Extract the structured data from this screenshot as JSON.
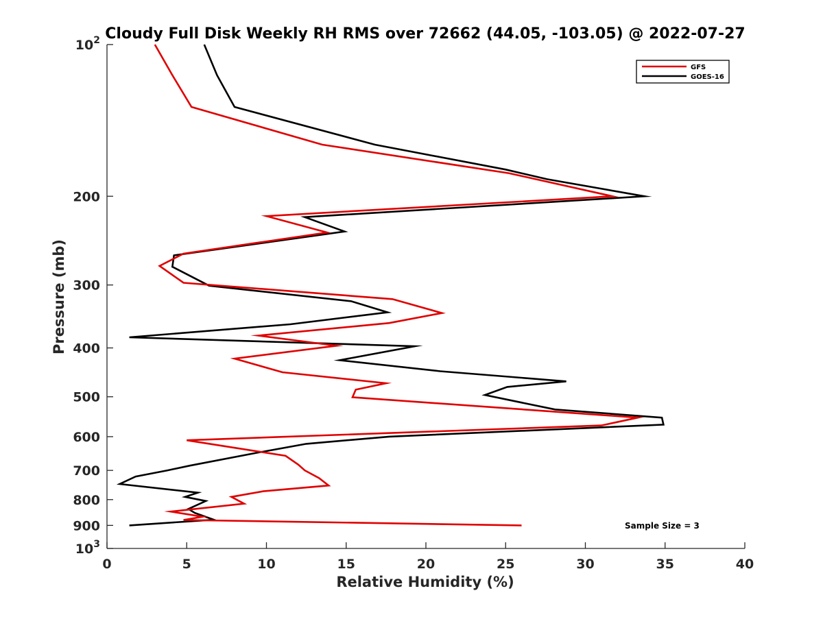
{
  "chart_data": {
    "type": "line",
    "title": "Cloudy Full Disk Weekly RH RMS over 72662 (44.05, -103.05) @ 2022-07-27",
    "xlabel": "Relative Humidity (%)",
    "ylabel": "Pressure (mb)",
    "xlim": [
      0,
      40
    ],
    "ylim": [
      100,
      1000
    ],
    "yscale": "log",
    "y_reversed": true,
    "xticks": [
      "0",
      "5",
      "10",
      "15",
      "20",
      "25",
      "30",
      "35",
      "40"
    ],
    "yticks": [
      "200",
      "300",
      "400",
      "500",
      "600",
      "700",
      "800",
      "900"
    ],
    "ytick_pow_top": {
      "base": "10",
      "exp": "2"
    },
    "ytick_pow_bottom": {
      "base": "10",
      "exp": "3"
    },
    "grid": false,
    "legend_position": "top-right",
    "annotation": "Sample Size = 3",
    "series": [
      {
        "name": "GFS",
        "color": "#e00000",
        "points": [
          [
            3.0,
            100
          ],
          [
            4.1,
            115
          ],
          [
            5.3,
            133
          ],
          [
            13.5,
            158
          ],
          [
            25.2,
            180
          ],
          [
            31.7,
            200
          ],
          [
            10.0,
            219
          ],
          [
            13.8,
            236
          ],
          [
            4.8,
            260
          ],
          [
            3.3,
            275
          ],
          [
            4.8,
            297
          ],
          [
            17.9,
            320
          ],
          [
            21.0,
            341
          ],
          [
            17.7,
            357
          ],
          [
            9.5,
            378
          ],
          [
            14.4,
            396
          ],
          [
            8.0,
            420
          ],
          [
            11.0,
            447
          ],
          [
            17.5,
            470
          ],
          [
            15.6,
            484
          ],
          [
            15.4,
            501
          ],
          [
            33.3,
            550
          ],
          [
            31.0,
            570
          ],
          [
            5.0,
            610
          ],
          [
            11.2,
            655
          ],
          [
            12.0,
            682
          ],
          [
            12.4,
            700
          ],
          [
            13.3,
            725
          ],
          [
            13.9,
            750
          ],
          [
            9.8,
            770
          ],
          [
            7.8,
            790
          ],
          [
            8.6,
            815
          ],
          [
            4.0,
            845
          ],
          [
            6.0,
            865
          ],
          [
            4.8,
            878
          ],
          [
            26.0,
            900
          ]
        ]
      },
      {
        "name": "GOES-16",
        "color": "#000000",
        "points": [
          [
            6.1,
            100
          ],
          [
            6.9,
            115
          ],
          [
            8.0,
            133
          ],
          [
            16.8,
            158
          ],
          [
            25.0,
            177
          ],
          [
            27.6,
            185
          ],
          [
            33.7,
            200
          ],
          [
            12.4,
            220
          ],
          [
            14.9,
            235
          ],
          [
            4.2,
            262
          ],
          [
            4.1,
            276
          ],
          [
            6.4,
            301
          ],
          [
            15.3,
            323
          ],
          [
            17.6,
            340
          ],
          [
            11.5,
            359
          ],
          [
            1.4,
            381
          ],
          [
            19.3,
            397
          ],
          [
            14.6,
            423
          ],
          [
            20.9,
            445
          ],
          [
            28.8,
            466
          ],
          [
            25.1,
            478
          ],
          [
            23.7,
            496
          ],
          [
            28.1,
            530
          ],
          [
            34.8,
            550
          ],
          [
            34.9,
            568
          ],
          [
            17.7,
            600
          ],
          [
            12.5,
            620
          ],
          [
            9.5,
            645
          ],
          [
            5.2,
            685
          ],
          [
            3.8,
            700
          ],
          [
            1.8,
            720
          ],
          [
            0.8,
            745
          ],
          [
            5.7,
            775
          ],
          [
            4.9,
            790
          ],
          [
            6.2,
            805
          ],
          [
            5.1,
            835
          ],
          [
            5.5,
            850
          ],
          [
            6.7,
            877
          ],
          [
            1.4,
            900
          ]
        ]
      }
    ]
  }
}
